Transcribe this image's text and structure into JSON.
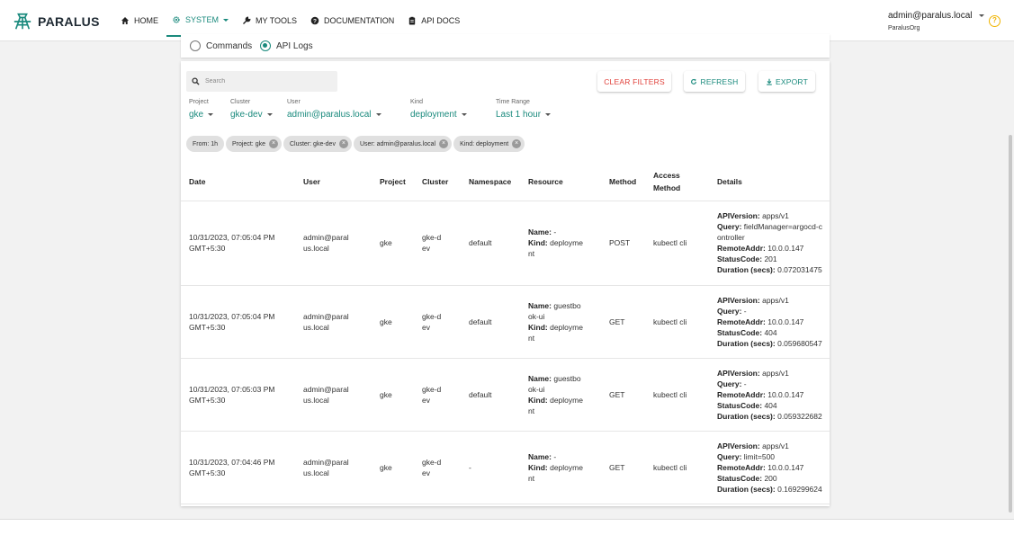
{
  "brand": {
    "name": "PARALUS",
    "accent": "#1a8a7d"
  },
  "nav": {
    "items": [
      {
        "label": "HOME",
        "icon": "home-icon"
      },
      {
        "label": "SYSTEM",
        "icon": "gear-icon",
        "active": true
      },
      {
        "label": "MY TOOLS",
        "icon": "wrench-icon"
      },
      {
        "label": "DOCUMENTATION",
        "icon": "help-circle-icon"
      },
      {
        "label": "API DOCS",
        "icon": "clipboard-icon"
      }
    ]
  },
  "user": {
    "email": "admin@paralus.local",
    "org": "ParalusOrg"
  },
  "log_type": {
    "commands": "Commands",
    "api_logs": "API Logs",
    "selected": "API Logs"
  },
  "toolbar": {
    "search_placeholder": "Search",
    "clear_filters": "CLEAR FILTERS",
    "refresh": "REFRESH",
    "export": "EXPORT"
  },
  "filters": {
    "project": {
      "label": "Project",
      "value": "gke"
    },
    "cluster": {
      "label": "Cluster",
      "value": "gke-dev"
    },
    "user": {
      "label": "User",
      "value": "admin@paralus.local"
    },
    "kind": {
      "label": "Kind",
      "value": "deployment"
    },
    "time_range": {
      "label": "Time Range",
      "value": "Last 1 hour"
    }
  },
  "chips": {
    "from": "From: 1h",
    "project": "Project: gke",
    "cluster": "Cluster: gke-dev",
    "user": "User: admin@paralus.local",
    "kind": "Kind: deployment"
  },
  "table": {
    "headers": {
      "date": "Date",
      "user": "User",
      "project": "Project",
      "cluster": "Cluster",
      "namespace": "Namespace",
      "resource": "Resource",
      "method": "Method",
      "access_method": "Access Method",
      "details": "Details"
    },
    "detail_labels": {
      "api_version": "APIVersion:",
      "query": "Query:",
      "remote_addr": "RemoteAddr:",
      "status_code": "StatusCode:",
      "duration": "Duration (secs):"
    },
    "resource_labels": {
      "name": "Name:",
      "kind": "Kind:"
    },
    "rows": [
      {
        "date": "10/31/2023, 07:05:04 PM GMT+5:30",
        "user": "admin@paralus.local",
        "project": "gke",
        "cluster": "gke-dev",
        "namespace": "default",
        "resource_name": "-",
        "resource_kind": "deployment",
        "method": "POST",
        "access_method": "kubectl cli",
        "api_version": "apps/v1",
        "query": "fieldManager=argocd-controller",
        "remote_addr": "10.0.0.147",
        "status_code": "201",
        "duration": "0.072031475"
      },
      {
        "date": "10/31/2023, 07:05:04 PM GMT+5:30",
        "user": "admin@paralus.local",
        "project": "gke",
        "cluster": "gke-dev",
        "namespace": "default",
        "resource_name": "guestbook-ui",
        "resource_kind": "deployment",
        "method": "GET",
        "access_method": "kubectl cli",
        "api_version": "apps/v1",
        "query": "-",
        "remote_addr": "10.0.0.147",
        "status_code": "404",
        "duration": "0.059680547"
      },
      {
        "date": "10/31/2023, 07:05:03 PM GMT+5:30",
        "user": "admin@paralus.local",
        "project": "gke",
        "cluster": "gke-dev",
        "namespace": "default",
        "resource_name": "guestbook-ui",
        "resource_kind": "deployment",
        "method": "GET",
        "access_method": "kubectl cli",
        "api_version": "apps/v1",
        "query": "-",
        "remote_addr": "10.0.0.147",
        "status_code": "404",
        "duration": "0.059322682"
      },
      {
        "date": "10/31/2023, 07:04:46 PM GMT+5:30",
        "user": "admin@paralus.local",
        "project": "gke",
        "cluster": "gke-dev",
        "namespace": "-",
        "resource_name": "-",
        "resource_kind": "deployment",
        "method": "GET",
        "access_method": "kubectl cli",
        "api_version": "apps/v1",
        "query": "limit=500",
        "remote_addr": "10.0.0.147",
        "status_code": "200",
        "duration": "0.169299624"
      }
    ]
  }
}
